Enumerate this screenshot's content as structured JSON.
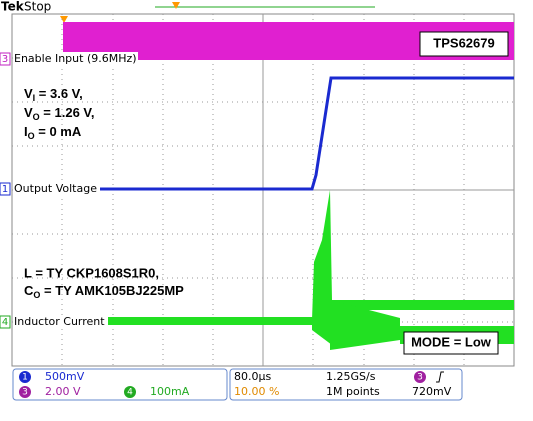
{
  "header": {
    "brand": "Tek",
    "state": "Stop"
  },
  "channels": [
    {
      "badge": "3",
      "label": "Enable Input (9.6MHz)"
    },
    {
      "badge": "1",
      "label": "Output Voltage"
    },
    {
      "badge": "4",
      "label": "Inductor Current"
    }
  ],
  "annotations": {
    "device": "TPS62679",
    "conditions": [
      {
        "symbol": "V",
        "sub": "I",
        "text": " = 3.6 V,"
      },
      {
        "symbol": "V",
        "sub": "O",
        "text": " = 1.26 V,"
      },
      {
        "symbol": "I",
        "sub": "O",
        "text": " = 0 mA"
      }
    ],
    "inductor": "L = TY CKP1608S1R0,",
    "capacitor": {
      "symbol": "C",
      "sub": "O",
      "text": " = TY AMK105BJ225MP"
    },
    "mode": "MODE = Low"
  },
  "status": {
    "ch1": {
      "badge": "1",
      "scale": "500mV"
    },
    "ch3": {
      "badge": "3",
      "scale": "2.00 V"
    },
    "ch4": {
      "badge": "4",
      "scale": "100mA"
    },
    "timebase": "80.0µs",
    "sample_rate": "1.25GS/s",
    "trigger_position": "10.00 %",
    "record_length": "1M points",
    "trigger": {
      "badge": "3",
      "level": "720mV"
    }
  }
}
